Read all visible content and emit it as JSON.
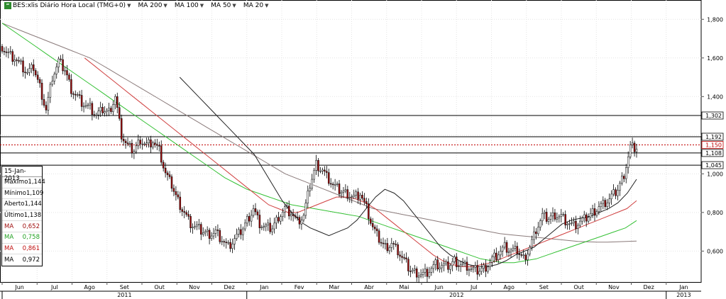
{
  "header": {
    "symbol_icon": "chart-symbol-icon",
    "symbol_label": "BES:xlis Diário Hora Local (TMG+0)",
    "indicators": [
      {
        "label": "MA 200",
        "color": "#808080"
      },
      {
        "label": "MA 100",
        "color": "#00b000"
      },
      {
        "label": "MA 50",
        "color": "#cc0000"
      },
      {
        "label": "MA 20",
        "color": "#000000"
      }
    ]
  },
  "info_box": {
    "date": "15-Jan-2013",
    "rows": [
      {
        "label": "Máximo",
        "value": "1,144",
        "color": "#000000"
      },
      {
        "label": "Mínimo",
        "value": "1,109",
        "color": "#000000"
      },
      {
        "label": "Aberto",
        "value": "1,144",
        "color": "#000000"
      },
      {
        "label": "Último",
        "value": "1,138",
        "color": "#000000"
      },
      {
        "label": "MA",
        "value": "0,652",
        "color": "#a01010"
      },
      {
        "label": "MA",
        "value": "0,758",
        "color": "#20a020"
      },
      {
        "label": "MA",
        "value": "0,861",
        "color": "#c01010"
      },
      {
        "label": "MA",
        "value": "0,972",
        "color": "#000000"
      }
    ]
  },
  "chart_data": {
    "type": "candlestick",
    "y_axis": {
      "range": [
        0.44,
        1.9
      ],
      "ticks": [
        0.6,
        0.8,
        1.0,
        1.2,
        1.4,
        1.6,
        1.8
      ],
      "tick_labels": [
        "0,600",
        "0,800",
        "1,000",
        "1,200",
        "1,400",
        "1,600",
        "1,800"
      ]
    },
    "x_axis": {
      "months": [
        "Jun",
        "Jul",
        "Ago",
        "Set",
        "Out",
        "Nov",
        "Dez",
        "Jan",
        "Fev",
        "Mar",
        "Abr",
        "Mai",
        "Jun",
        "Jul",
        "Ago",
        "Set",
        "Out",
        "Nov",
        "Dez",
        "Jan"
      ],
      "years": [
        "2011",
        "2012",
        "2013"
      ]
    },
    "horizontal_levels": [
      {
        "value": 1.302,
        "label": "1,302",
        "style": "solid"
      },
      {
        "value": 1.192,
        "label": "1,192",
        "style": "solid"
      },
      {
        "value": 1.15,
        "label": "1,150",
        "style": "dotted-red"
      },
      {
        "value": 1.108,
        "label": "1,108",
        "style": "solid"
      },
      {
        "value": 1.045,
        "label": "1,045",
        "style": "solid"
      }
    ],
    "price": [
      1.66,
      1.62,
      1.6,
      1.56,
      1.52,
      1.55,
      1.45,
      1.33,
      1.5,
      1.58,
      1.54,
      1.44,
      1.4,
      1.36,
      1.34,
      1.3,
      1.33,
      1.32,
      1.4,
      1.2,
      1.14,
      1.12,
      1.18,
      1.15,
      1.17,
      1.12,
      1.0,
      0.94,
      0.86,
      0.8,
      0.74,
      0.72,
      0.7,
      0.69,
      0.7,
      0.66,
      0.62,
      0.66,
      0.7,
      0.76,
      0.82,
      0.74,
      0.72,
      0.72,
      0.78,
      0.82,
      0.8,
      0.75,
      0.78,
      0.94,
      1.05,
      1.02,
      0.97,
      0.93,
      0.91,
      0.9,
      0.88,
      0.9,
      0.82,
      0.72,
      0.66,
      0.62,
      0.64,
      0.6,
      0.55,
      0.5,
      0.49,
      0.48,
      0.5,
      0.53,
      0.52,
      0.52,
      0.55,
      0.53,
      0.52,
      0.5,
      0.5,
      0.52,
      0.56,
      0.59,
      0.62,
      0.6,
      0.6,
      0.56,
      0.62,
      0.71,
      0.78,
      0.77,
      0.79,
      0.78,
      0.75,
      0.73,
      0.75,
      0.77,
      0.8,
      0.83,
      0.85,
      0.88,
      0.92,
      1.0,
      1.14,
      1.138
    ],
    "ma_200": [
      1.78,
      1.76,
      1.74,
      1.72,
      1.7,
      1.68,
      1.66,
      1.64,
      1.62,
      1.6,
      1.57,
      1.54,
      1.51,
      1.48,
      1.45,
      1.42,
      1.39,
      1.36,
      1.33,
      1.3,
      1.27,
      1.24,
      1.21,
      1.18,
      1.15,
      1.12,
      1.09,
      1.06,
      1.03,
      1.0,
      0.98,
      0.96,
      0.94,
      0.92,
      0.9,
      0.88,
      0.86,
      0.84,
      0.82,
      0.81,
      0.8,
      0.79,
      0.78,
      0.77,
      0.76,
      0.75,
      0.74,
      0.73,
      0.72,
      0.71,
      0.7,
      0.69,
      0.685,
      0.68,
      0.675,
      0.67,
      0.665,
      0.66,
      0.655,
      0.65,
      0.648,
      0.646,
      0.646,
      0.648,
      0.65,
      0.652
    ],
    "ma_100": [
      1.78,
      1.74,
      1.7,
      1.66,
      1.62,
      1.58,
      1.54,
      1.5,
      1.46,
      1.42,
      1.38,
      1.34,
      1.3,
      1.26,
      1.22,
      1.18,
      1.14,
      1.1,
      1.06,
      1.02,
      0.98,
      0.95,
      0.92,
      0.9,
      0.88,
      0.86,
      0.84,
      0.83,
      0.82,
      0.81,
      0.8,
      0.79,
      0.78,
      0.76,
      0.74,
      0.72,
      0.7,
      0.68,
      0.66,
      0.64,
      0.62,
      0.6,
      0.58,
      0.56,
      0.55,
      0.54,
      0.54,
      0.55,
      0.56,
      0.58,
      0.6,
      0.62,
      0.64,
      0.66,
      0.68,
      0.7,
      0.72,
      0.758
    ],
    "ma_50": [
      1.6,
      1.56,
      1.52,
      1.48,
      1.44,
      1.4,
      1.36,
      1.32,
      1.28,
      1.24,
      1.2,
      1.16,
      1.12,
      1.08,
      1.04,
      1.0,
      0.96,
      0.92,
      0.88,
      0.84,
      0.82,
      0.8,
      0.8,
      0.82,
      0.84,
      0.86,
      0.88,
      0.88,
      0.87,
      0.85,
      0.82,
      0.78,
      0.74,
      0.7,
      0.66,
      0.62,
      0.58,
      0.55,
      0.53,
      0.52,
      0.52,
      0.53,
      0.54,
      0.56,
      0.58,
      0.6,
      0.62,
      0.64,
      0.66,
      0.68,
      0.7,
      0.72,
      0.74,
      0.76,
      0.78,
      0.8,
      0.82,
      0.861
    ],
    "ma_20": [
      1.5,
      1.45,
      1.4,
      1.35,
      1.3,
      1.25,
      1.2,
      1.15,
      1.1,
      1.02,
      0.94,
      0.86,
      0.8,
      0.75,
      0.72,
      0.7,
      0.68,
      0.7,
      0.72,
      0.76,
      0.82,
      0.88,
      0.92,
      0.9,
      0.86,
      0.8,
      0.74,
      0.68,
      0.62,
      0.58,
      0.55,
      0.53,
      0.52,
      0.52,
      0.53,
      0.55,
      0.58,
      0.6,
      0.62,
      0.66,
      0.7,
      0.74,
      0.76,
      0.77,
      0.78,
      0.8,
      0.82,
      0.85,
      0.9,
      0.972
    ]
  }
}
